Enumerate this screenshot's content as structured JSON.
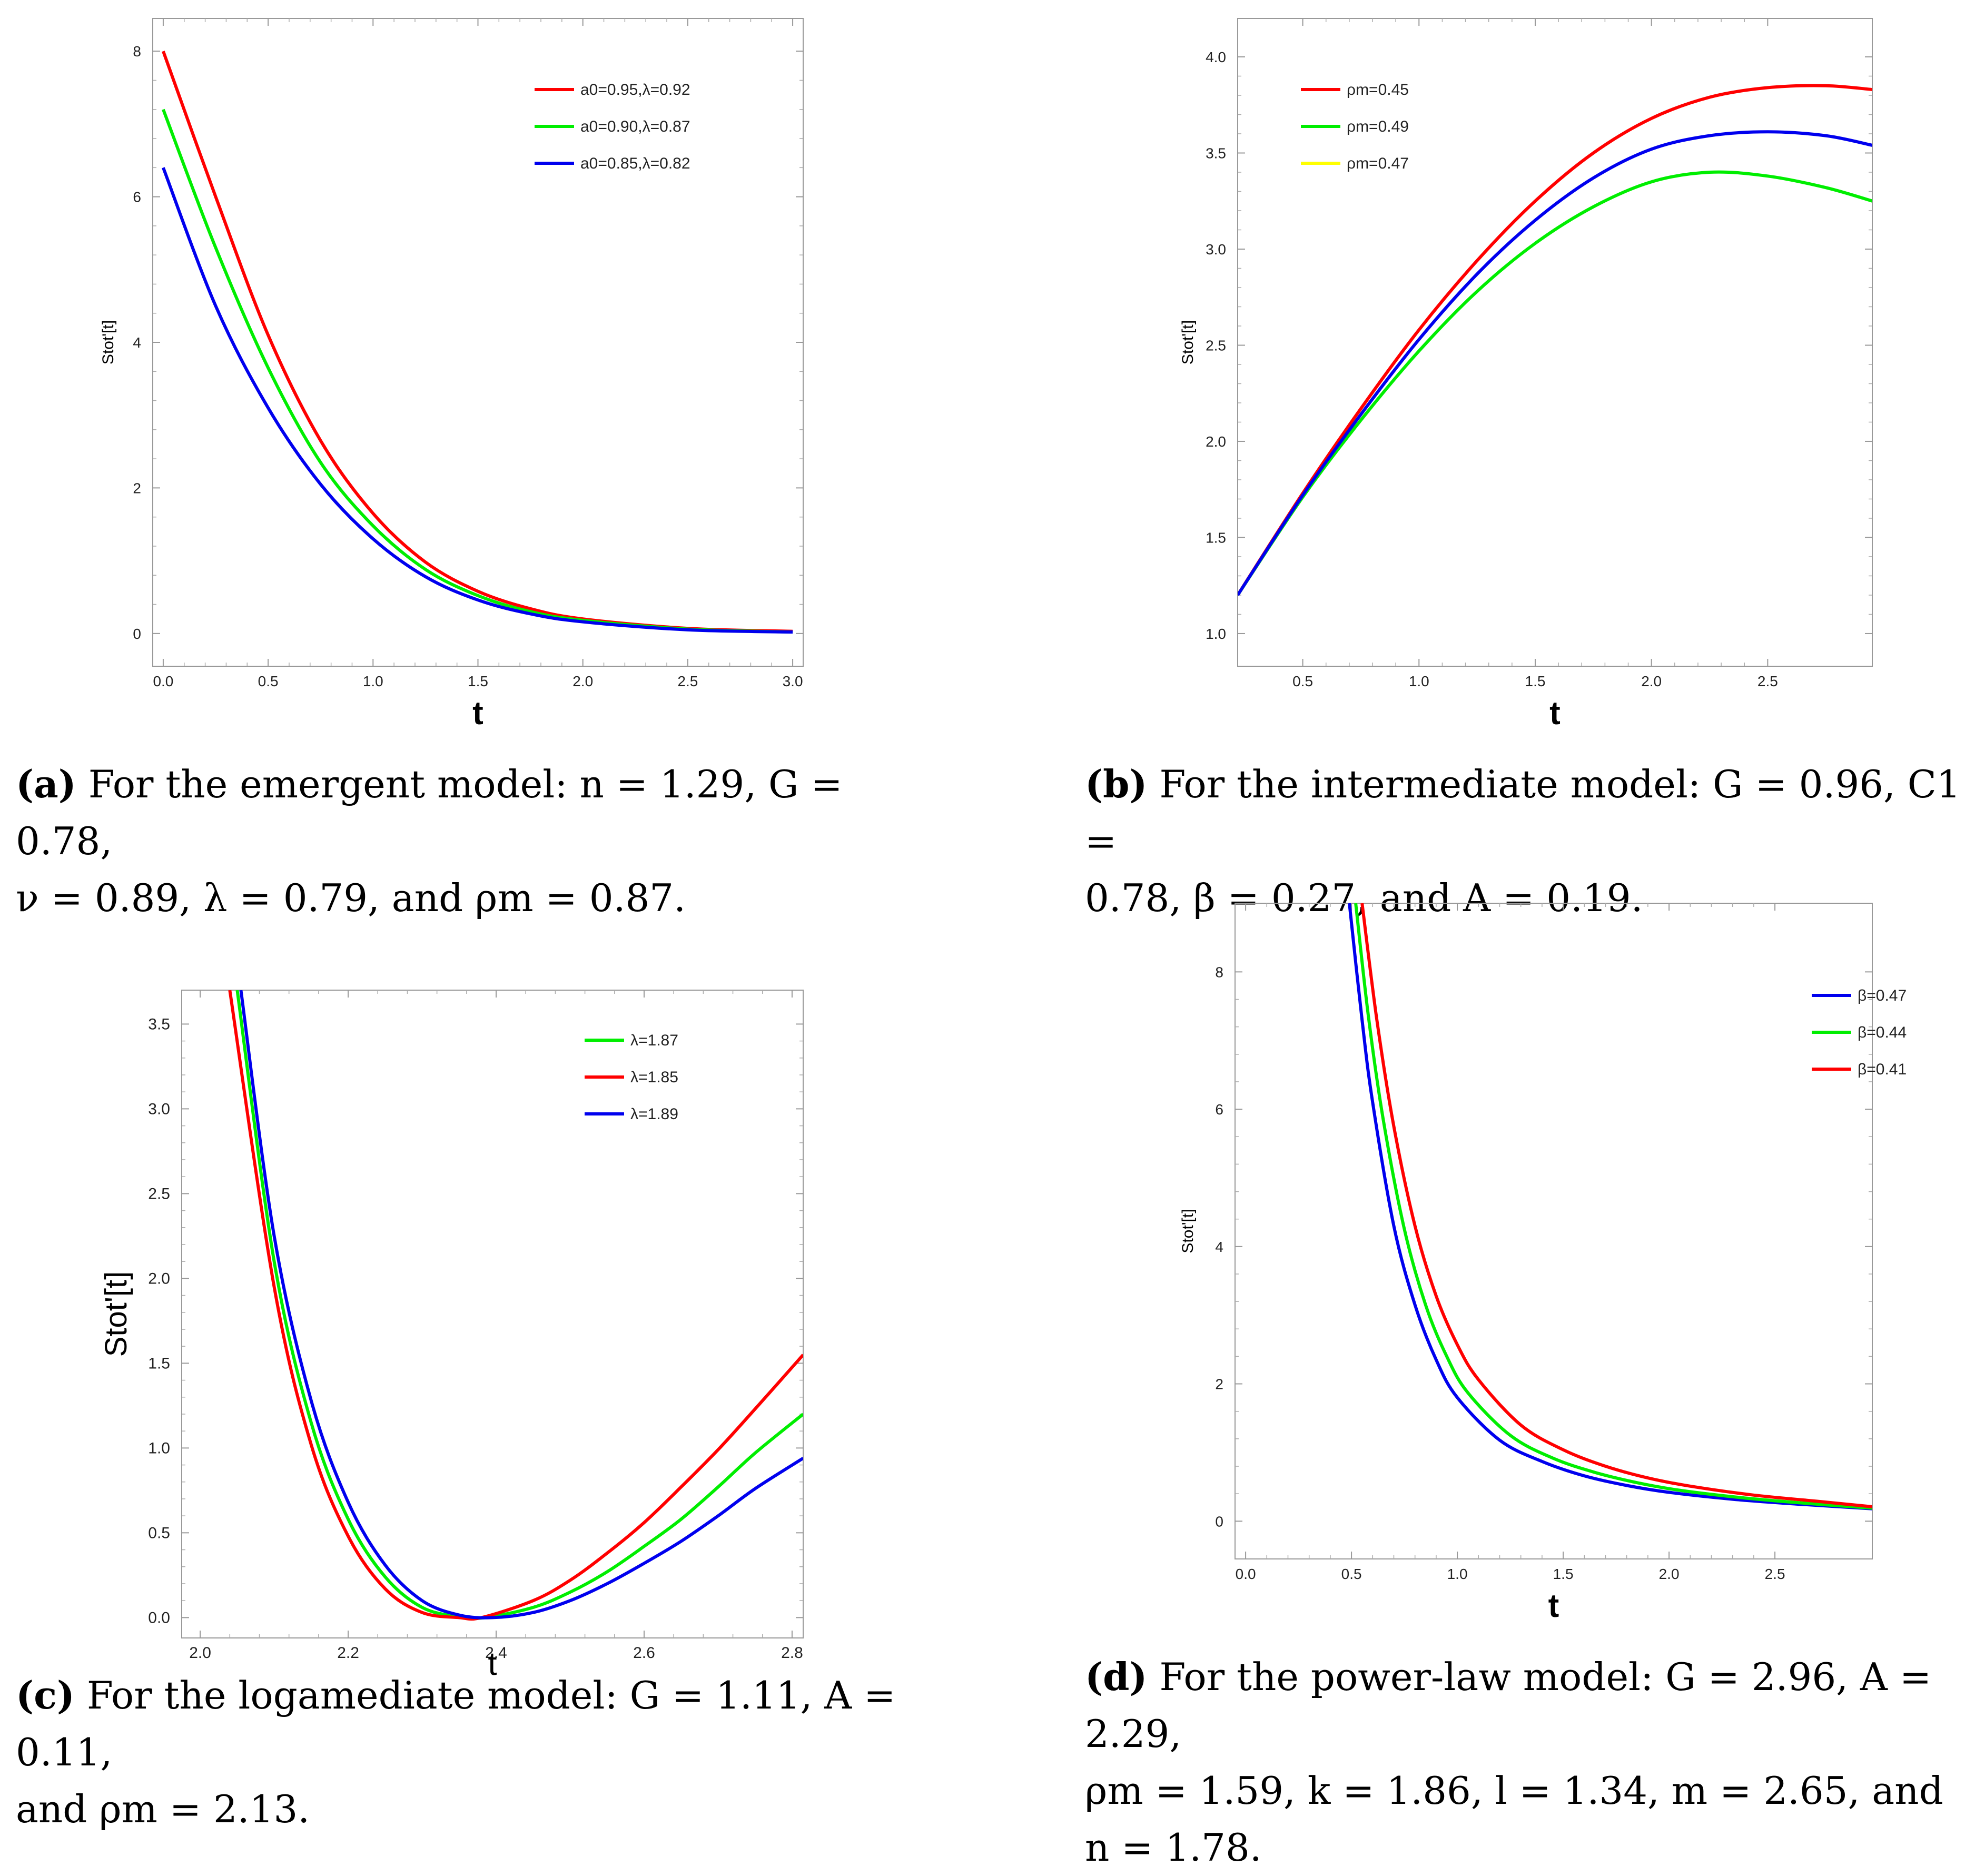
{
  "chart_data": [
    {
      "id": "a",
      "type": "line",
      "xlabel": "t",
      "ylabel": "Stot'[t]",
      "xlim": [
        -0.05,
        3.05
      ],
      "ylim": [
        -0.45,
        8.45
      ],
      "xticks": [
        "0.0",
        "0.5",
        "1.0",
        "1.5",
        "2.0",
        "2.5",
        "3.0"
      ],
      "xtick_values": [
        0,
        0.5,
        1,
        1.5,
        2,
        2.5,
        3
      ],
      "yticks": [
        "0",
        "2",
        "4",
        "6",
        "8"
      ],
      "ytick_values": [
        0,
        2,
        4,
        6,
        8
      ],
      "legend_position": "top-right",
      "series": [
        {
          "name": "a0=0.95,λ=0.92",
          "color": "#ff0000",
          "x": [
            0,
            0.25,
            0.5,
            0.75,
            1.0,
            1.25,
            1.5,
            1.75,
            2.0,
            2.5,
            3.0
          ],
          "y": [
            8.0,
            6.0,
            4.1,
            2.65,
            1.65,
            0.98,
            0.58,
            0.34,
            0.2,
            0.07,
            0.03
          ]
        },
        {
          "name": "a0=0.90,λ=0.87",
          "color": "#00ee00",
          "x": [
            0,
            0.25,
            0.5,
            0.75,
            1.0,
            1.25,
            1.5,
            1.75,
            2.0,
            2.5,
            3.0
          ],
          "y": [
            7.2,
            5.3,
            3.65,
            2.35,
            1.48,
            0.88,
            0.52,
            0.3,
            0.18,
            0.06,
            0.02
          ]
        },
        {
          "name": "a0=0.85,λ=0.82",
          "color": "#0000ee",
          "x": [
            0,
            0.25,
            0.5,
            0.75,
            1.0,
            1.25,
            1.5,
            1.75,
            2.0,
            2.5,
            3.0
          ],
          "y": [
            6.4,
            4.5,
            3.1,
            2.05,
            1.3,
            0.78,
            0.46,
            0.27,
            0.16,
            0.05,
            0.02
          ]
        }
      ]
    },
    {
      "id": "b",
      "type": "line",
      "xlabel": "t",
      "ylabel": "Stot'[t]",
      "xlim": [
        0.22,
        2.95
      ],
      "ylim": [
        0.83,
        4.2
      ],
      "xticks": [
        "0.5",
        "1.0",
        "1.5",
        "2.0",
        "2.5"
      ],
      "xtick_values": [
        0.5,
        1,
        1.5,
        2,
        2.5
      ],
      "yticks": [
        "1.0",
        "1.5",
        "2.0",
        "2.5",
        "3.0",
        "3.5",
        "4.0"
      ],
      "ytick_values": [
        1,
        1.5,
        2,
        2.5,
        3,
        3.5,
        4
      ],
      "legend_position": "top-left",
      "series": [
        {
          "name": "ρm=0.45",
          "color": "#ff0000",
          "x": [
            0.22,
            0.5,
            0.75,
            1.0,
            1.25,
            1.5,
            1.75,
            2.0,
            2.25,
            2.5,
            2.75,
            2.95
          ],
          "y": [
            1.2,
            1.73,
            2.17,
            2.58,
            2.94,
            3.25,
            3.5,
            3.68,
            3.79,
            3.84,
            3.85,
            3.83
          ]
        },
        {
          "name": "ρm=0.49",
          "color": "#00ee00",
          "x": [
            0.22,
            0.5,
            0.75,
            1.0,
            1.25,
            1.5,
            1.75,
            2.0,
            2.25,
            2.5,
            2.75,
            2.95
          ],
          "y": [
            1.2,
            1.71,
            2.11,
            2.47,
            2.78,
            3.03,
            3.22,
            3.35,
            3.4,
            3.38,
            3.32,
            3.25
          ]
        },
        {
          "name": "ρm=0.47",
          "color": "#ffff00",
          "x": [],
          "y": []
        },
        {
          "name": "",
          "color": "#0000ee",
          "x": [
            0.22,
            0.5,
            0.75,
            1.0,
            1.25,
            1.5,
            1.75,
            2.0,
            2.25,
            2.5,
            2.75,
            2.95
          ],
          "y": [
            1.2,
            1.72,
            2.14,
            2.53,
            2.87,
            3.15,
            3.37,
            3.52,
            3.59,
            3.61,
            3.59,
            3.54
          ]
        }
      ]
    },
    {
      "id": "c",
      "type": "line",
      "xlabel": "t",
      "ylabel": "Stot'[t]",
      "xlim": [
        1.975,
        2.815
      ],
      "ylim": [
        -0.12,
        3.7
      ],
      "xticks": [
        "2.0",
        "2.2",
        "2.4",
        "2.6",
        "2.8"
      ],
      "xtick_values": [
        2.0,
        2.2,
        2.4,
        2.6,
        2.8
      ],
      "yticks": [
        "0.0",
        "0.5",
        "1.0",
        "1.5",
        "2.0",
        "2.5",
        "3.0",
        "3.5"
      ],
      "ytick_values": [
        0,
        0.5,
        1,
        1.5,
        2,
        2.5,
        3,
        3.5
      ],
      "legend_position": "top-right",
      "series": [
        {
          "name": "λ=1.87",
          "color": "#00ee00",
          "x": [
            2.05,
            2.1,
            2.15,
            2.2,
            2.25,
            2.3,
            2.35,
            2.385,
            2.45,
            2.5,
            2.55,
            2.6,
            2.65,
            2.7,
            2.75,
            2.815
          ],
          "y": [
            3.7,
            2.1,
            1.15,
            0.58,
            0.24,
            0.06,
            0.005,
            0.0,
            0.06,
            0.15,
            0.27,
            0.42,
            0.58,
            0.77,
            0.97,
            1.2
          ]
        },
        {
          "name": "λ=1.85",
          "color": "#ff0000",
          "x": [
            2.04,
            2.1,
            2.15,
            2.2,
            2.25,
            2.3,
            2.35,
            2.38,
            2.45,
            2.5,
            2.55,
            2.6,
            2.65,
            2.7,
            2.75,
            2.815
          ],
          "y": [
            3.7,
            1.95,
            1.02,
            0.48,
            0.17,
            0.03,
            0.0,
            0.0,
            0.1,
            0.22,
            0.38,
            0.56,
            0.77,
            0.99,
            1.23,
            1.55
          ]
        },
        {
          "name": "λ=1.89",
          "color": "#0000ee",
          "x": [
            2.055,
            2.1,
            2.15,
            2.2,
            2.25,
            2.3,
            2.35,
            2.395,
            2.45,
            2.5,
            2.55,
            2.6,
            2.65,
            2.7,
            2.75,
            2.815
          ],
          "y": [
            3.7,
            2.25,
            1.28,
            0.68,
            0.31,
            0.1,
            0.015,
            0.0,
            0.03,
            0.1,
            0.2,
            0.32,
            0.45,
            0.6,
            0.76,
            0.94
          ]
        }
      ]
    },
    {
      "id": "d",
      "type": "line",
      "xlabel": "t",
      "ylabel": "Stot'[t]",
      "xlim": [
        -0.05,
        2.96
      ],
      "ylim": [
        -0.55,
        9.0
      ],
      "xticks": [
        "0.0",
        "0.5",
        "1.0",
        "1.5",
        "2.0",
        "2.5"
      ],
      "xtick_values": [
        0,
        0.5,
        1,
        1.5,
        2,
        2.5
      ],
      "yticks": [
        "0",
        "2",
        "4",
        "6",
        "8"
      ],
      "ytick_values": [
        0,
        2,
        4,
        6,
        8
      ],
      "legend_position": "top-right",
      "series": [
        {
          "name": "β=0.47",
          "color": "#0000ee",
          "x": [
            0.49,
            0.55,
            0.6,
            0.7,
            0.8,
            0.9,
            1.0,
            1.2,
            1.4,
            1.6,
            1.8,
            2.0,
            2.3,
            2.6,
            2.96
          ],
          "y": [
            9.0,
            7.3,
            6.1,
            4.3,
            3.15,
            2.35,
            1.8,
            1.18,
            0.87,
            0.66,
            0.52,
            0.42,
            0.32,
            0.25,
            0.18
          ]
        },
        {
          "name": "β=0.44",
          "color": "#00ee00",
          "x": [
            0.52,
            0.58,
            0.65,
            0.75,
            0.85,
            0.95,
            1.05,
            1.25,
            1.45,
            1.65,
            1.85,
            2.05,
            2.35,
            2.65,
            2.96
          ],
          "y": [
            9.0,
            7.35,
            5.85,
            4.25,
            3.15,
            2.4,
            1.87,
            1.25,
            0.92,
            0.71,
            0.56,
            0.45,
            0.34,
            0.26,
            0.19
          ]
        },
        {
          "name": "β=0.41",
          "color": "#ff0000",
          "x": [
            0.55,
            0.62,
            0.7,
            0.8,
            0.9,
            1.0,
            1.1,
            1.3,
            1.5,
            1.7,
            1.9,
            2.1,
            2.4,
            2.7,
            2.96
          ],
          "y": [
            9.0,
            7.3,
            5.75,
            4.3,
            3.28,
            2.57,
            2.06,
            1.4,
            1.04,
            0.8,
            0.63,
            0.51,
            0.38,
            0.29,
            0.21
          ]
        }
      ]
    }
  ],
  "captions": {
    "a": {
      "label": "(a)",
      "line1": "For the emergent model: n = 1.29, G = 0.78,",
      "line2": "ν = 0.89, λ = 0.79, and ρm = 0.87."
    },
    "b": {
      "label": "(b)",
      "line1": "For the intermediate model: G = 0.96, C1 =",
      "line2": "0.78, β = 0.27, and A = 0.19."
    },
    "c": {
      "label": "(c)",
      "line1": "For the logamediate model: G = 1.11, A = 0.11,",
      "line2": "and ρm = 2.13."
    },
    "d": {
      "label": "(d)",
      "line1": "For the power-law model: G = 2.96, A = 2.29,",
      "line2": "ρm = 1.59, k = 1.86, l = 1.34, m = 2.65, and",
      "line3": "n = 1.78."
    }
  }
}
